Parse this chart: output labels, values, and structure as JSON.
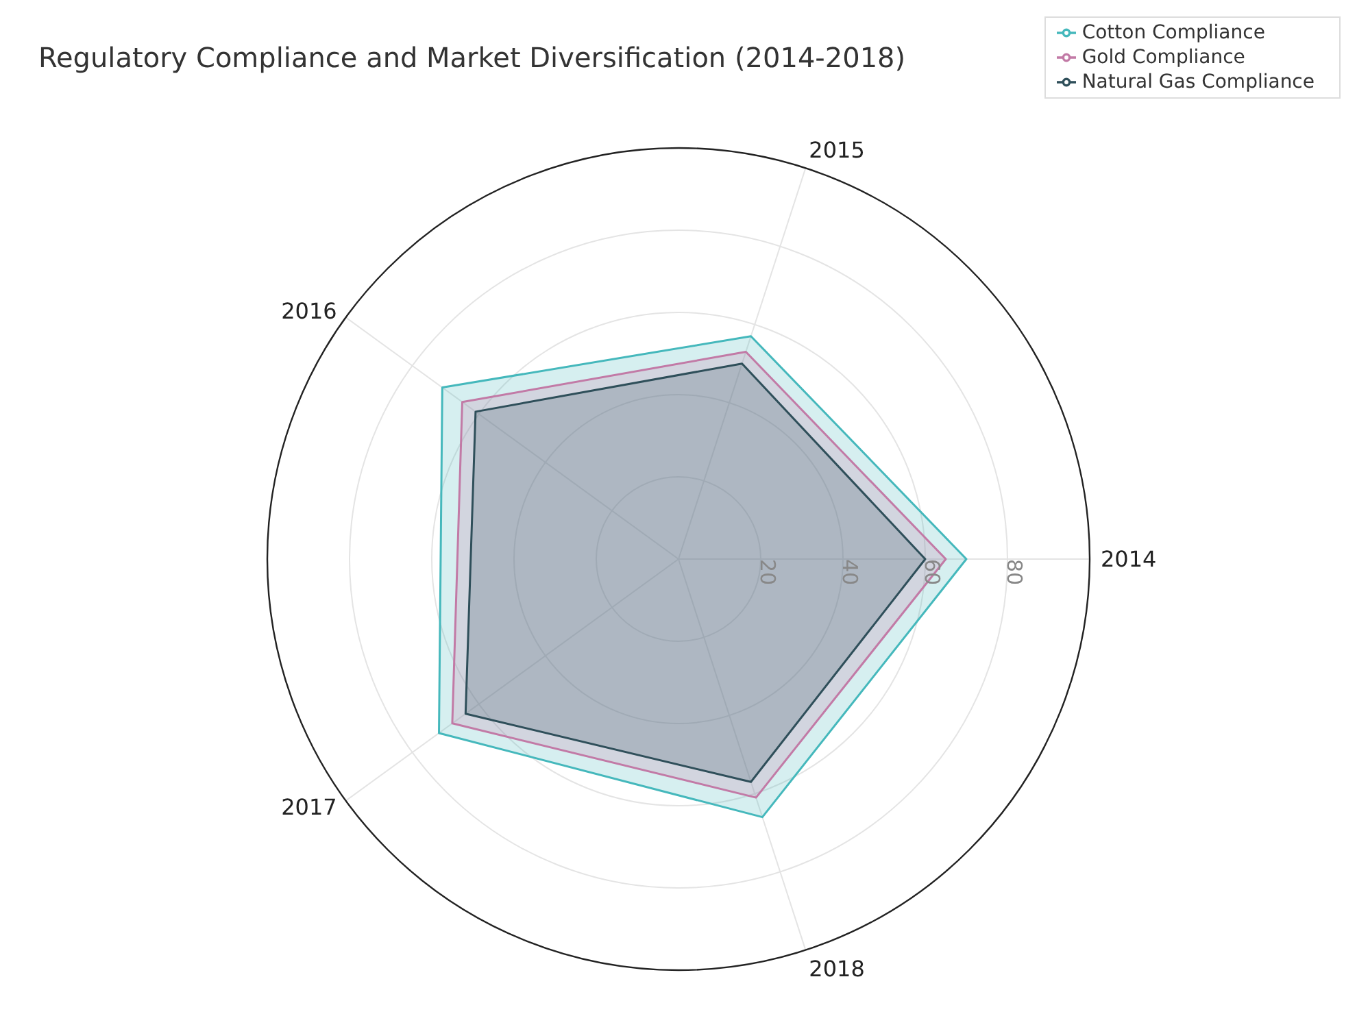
{
  "chart_data": {
    "type": "radar",
    "title": "Regulatory Compliance and Market Diversification (2014-2018)",
    "categories": [
      "2015",
      "2014",
      "2018",
      "2017",
      "2016"
    ],
    "ylim": [
      0,
      100
    ],
    "yticks": [
      20,
      40,
      60,
      80
    ],
    "grid": true,
    "legend": "top right",
    "marker": "none",
    "series": [
      {
        "name": "Cotton Compliance",
        "color": "#45b8bc",
        "values": [
          57,
          70,
          66,
          72,
          71
        ]
      },
      {
        "name": "Gold Compliance",
        "color": "#c27aa6",
        "values": [
          53,
          65,
          61,
          68,
          65
        ]
      },
      {
        "name": "Natural Gas Compliance",
        "color": "#2f4f5a",
        "values": [
          50,
          60,
          57,
          64,
          61
        ]
      }
    ]
  }
}
